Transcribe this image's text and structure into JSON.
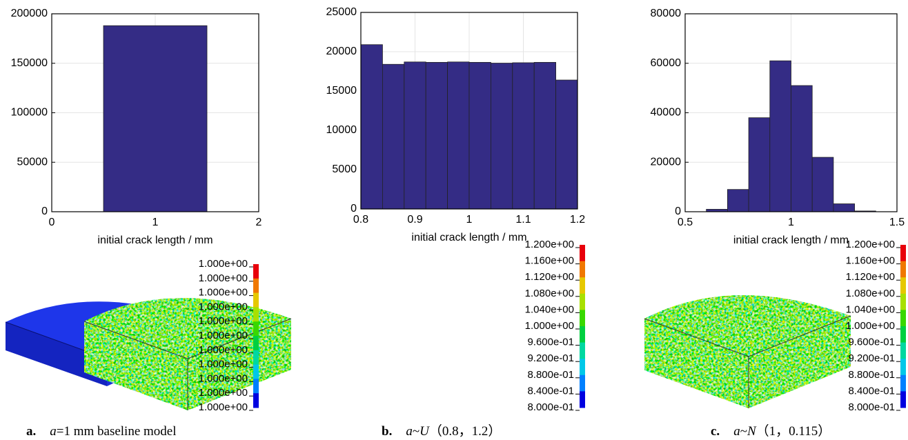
{
  "chart_data": [
    {
      "type": "histogram",
      "xlabel": "initial crack length / mm",
      "color": "#342c85",
      "bins": [
        0.5,
        1.5
      ],
      "counts": [
        188000
      ],
      "xlim": [
        0,
        2
      ],
      "xticks": [
        0,
        1,
        2
      ],
      "ylim": [
        0,
        200000
      ],
      "yticks": [
        0,
        50000,
        100000,
        150000,
        200000
      ],
      "grid": true,
      "colorbar_labels": [
        "1.000e+00",
        "1.000e+00",
        "1.000e+00",
        "1.000e+00",
        "1.000e+00",
        "1.000e+00",
        "1.000e+00",
        "1.000e+00",
        "1.000e+00",
        "1.000e+00",
        "1.000e+00"
      ],
      "colorbar_colors": [
        "#e8000b",
        "#f07800",
        "#e6c800",
        "#a8e000",
        "#38d800",
        "#00d040",
        "#00d8a0",
        "#00c8e8",
        "#0080ff",
        "#0000e0"
      ],
      "caption": [
        {
          "text": "a.",
          "bold": true
        },
        {
          "text": "a",
          "italic": true
        },
        {
          "text": "=1 mm baseline model"
        }
      ]
    },
    {
      "type": "histogram",
      "xlabel": "initial crack length / mm",
      "color": "#342c85",
      "bins": [
        0.8,
        0.84,
        0.88,
        0.92,
        0.96,
        1.0,
        1.04,
        1.08,
        1.12,
        1.16,
        1.2
      ],
      "counts": [
        20900,
        18400,
        18700,
        18650,
        18700,
        18650,
        18550,
        18600,
        18650,
        16400
      ],
      "xlim": [
        0.8,
        1.2
      ],
      "xticks": [
        0.8,
        0.9,
        1,
        1.1,
        1.2
      ],
      "ylim": [
        0,
        25000
      ],
      "yticks": [
        0,
        5000,
        10000,
        15000,
        20000,
        25000
      ],
      "grid": true,
      "colorbar_labels": [
        "1.200e+00",
        "1.160e+00",
        "1.120e+00",
        "1.080e+00",
        "1.040e+00",
        "1.000e+00",
        "9.600e-01",
        "9.200e-01",
        "8.800e-01",
        "8.400e-01",
        "8.000e-01"
      ],
      "colorbar_colors": [
        "#e8000b",
        "#f07800",
        "#e6c800",
        "#a8e000",
        "#38d800",
        "#00d040",
        "#00d8a0",
        "#00c8e8",
        "#0080ff",
        "#0000e0"
      ],
      "caption": [
        {
          "text": "b.",
          "bold": true
        },
        {
          "text": "a",
          "italic": true
        },
        {
          "text": "~"
        },
        {
          "text": "U",
          "italic": true
        },
        {
          "text": "（0.8，1.2）"
        }
      ]
    },
    {
      "type": "histogram",
      "xlabel": "initial crack length / mm",
      "color": "#342c85",
      "bins": [
        0.6,
        0.7,
        0.8,
        0.9,
        1.0,
        1.1,
        1.2,
        1.3,
        1.4
      ],
      "counts": [
        1000,
        9000,
        38000,
        61000,
        51000,
        22000,
        3200,
        300
      ],
      "xlim": [
        0.5,
        1.5
      ],
      "xticks": [
        0.5,
        1,
        1.5
      ],
      "ylim": [
        0,
        80000
      ],
      "yticks": [
        0,
        20000,
        40000,
        60000,
        80000
      ],
      "grid": true,
      "colorbar_labels": [
        "1.200e+00",
        "1.160e+00",
        "1.120e+00",
        "1.080e+00",
        "1.040e+00",
        "1.000e+00",
        "9.600e-01",
        "9.200e-01",
        "8.800e-01",
        "8.400e-01",
        "8.000e-01"
      ],
      "colorbar_colors": [
        "#e8000b",
        "#f07800",
        "#e6c800",
        "#a8e000",
        "#38d800",
        "#00d040",
        "#00d8a0",
        "#00c8e8",
        "#0080ff",
        "#0000e0"
      ],
      "caption": [
        {
          "text": "c.",
          "bold": true
        },
        {
          "text": "a",
          "italic": true
        },
        {
          "text": "~"
        },
        {
          "text": "N",
          "italic": true
        },
        {
          "text": "（1，0.115）"
        }
      ]
    }
  ]
}
